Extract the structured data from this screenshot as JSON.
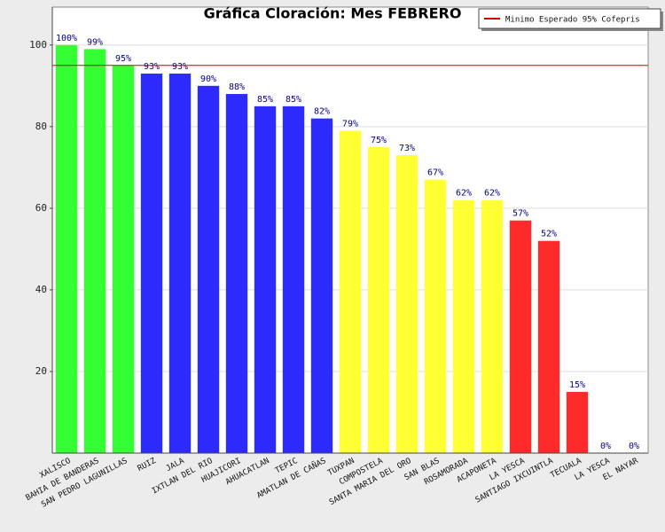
{
  "chart_data": {
    "type": "bar",
    "title": "Gráfica Cloración: Mes FEBRERO",
    "categories": [
      "XALISCO",
      "BAHIA DE BANDERAS",
      "SAN PEDRO LAGUNILLAS",
      "RUIZ",
      "JALA",
      "IXTLAN DEL RIO",
      "HUAJICORI",
      "AHUACATLAN",
      "TEPIC",
      "AMATLAN DE CAÑAS",
      "TUXPAN",
      "COMPOSTELA",
      "SANTA MARIA DEL ORO",
      "SAN BLAS",
      "ROSAMORADA",
      "ACAPONETA",
      "LA YESCA",
      "SANTIAGO IXCUINTLA",
      "TECUALA",
      "LA YESCA",
      "EL NAYAR"
    ],
    "values": [
      100,
      99,
      95,
      93,
      93,
      90,
      88,
      85,
      85,
      82,
      79,
      75,
      73,
      67,
      62,
      62,
      57,
      52,
      15,
      0,
      0
    ],
    "value_labels": [
      "100%",
      "99%",
      "95%",
      "93%",
      "93%",
      "90%",
      "88%",
      "85%",
      "85%",
      "82%",
      "79%",
      "75%",
      "73%",
      "67%",
      "62%",
      "62%",
      "57%",
      "52%",
      "15%",
      "0%",
      "0%"
    ],
    "colors": [
      "#33ff33",
      "#33ff33",
      "#33ff33",
      "#2b2bff",
      "#2b2bff",
      "#2b2bff",
      "#2b2bff",
      "#2b2bff",
      "#2b2bff",
      "#2b2bff",
      "#ffff33",
      "#ffff33",
      "#ffff33",
      "#ffff33",
      "#ffff33",
      "#ffff33",
      "#ff2b2b",
      "#ff2b2b",
      "#ff2b2b",
      "#ff2b2b",
      "#ff2b2b"
    ],
    "ylim": [
      0,
      109.3
    ],
    "yticks": [
      20,
      40,
      60,
      80,
      100
    ],
    "grid": true,
    "reference_line": {
      "value": 95,
      "label": "Minimo Esperado 95% Cofepris",
      "color": "#cc0000"
    },
    "legend": "top-right"
  }
}
